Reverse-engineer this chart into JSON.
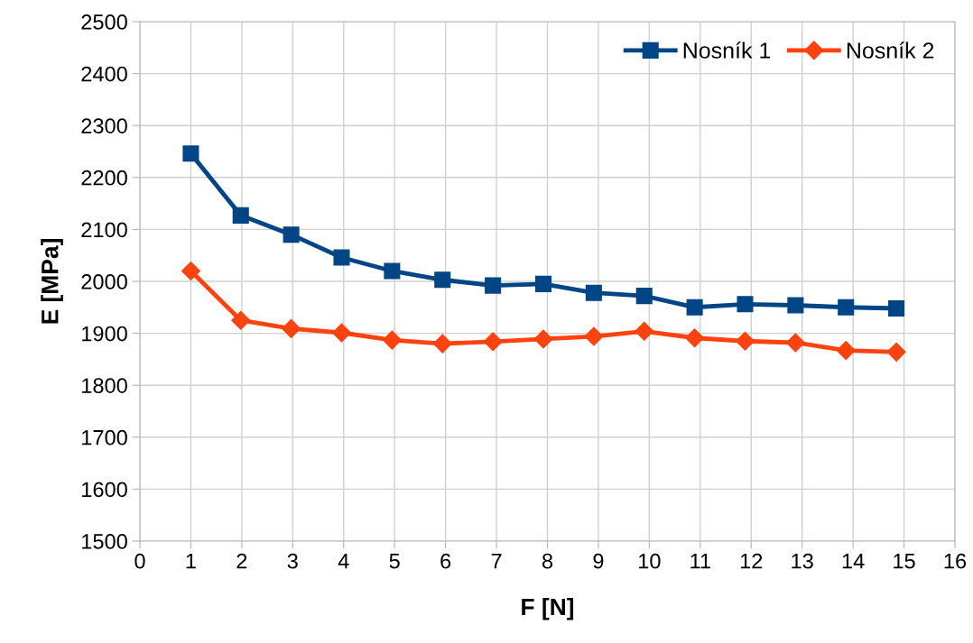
{
  "chart_data": {
    "type": "line",
    "xlabel": "F [N]",
    "ylabel": "E [MPa]",
    "x": [
      1,
      1.98,
      2.97,
      3.96,
      4.95,
      5.94,
      6.93,
      7.92,
      8.91,
      9.9,
      10.89,
      11.88,
      12.87,
      13.86,
      14.85
    ],
    "series": [
      {
        "name": "Nosník 1",
        "color": "#004586",
        "marker": "square",
        "values": [
          2246,
          2127,
          2090,
          2046,
          2020,
          2003,
          1992,
          1995,
          1978,
          1972,
          1950,
          1956,
          1954,
          1950,
          1948
        ]
      },
      {
        "name": "Nosník 2",
        "color": "#ff420e",
        "marker": "diamond",
        "values": [
          2020,
          1925,
          1909,
          1901,
          1887,
          1880,
          1884,
          1889,
          1894,
          1904,
          1891,
          1885,
          1882,
          1867,
          1864
        ]
      }
    ],
    "xlim": [
      0,
      16
    ],
    "xticks": [
      0,
      1,
      2,
      3,
      4,
      5,
      6,
      7,
      8,
      9,
      10,
      11,
      12,
      13,
      14,
      15,
      16
    ],
    "ylim": [
      1500,
      2500
    ],
    "yticks": [
      1500,
      1600,
      1700,
      1800,
      1900,
      2000,
      2100,
      2200,
      2300,
      2400,
      2500
    ],
    "grid": true,
    "legend": "top right",
    "line_style": "solid"
  }
}
